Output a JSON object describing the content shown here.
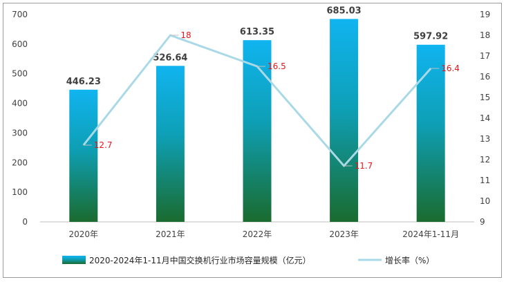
{
  "chart_data": {
    "type": "bar+line",
    "categories": [
      "2020年",
      "2021年",
      "2022年",
      "2023年",
      "2024年1-11月"
    ],
    "series": [
      {
        "name": "2020-2024年1-11月中国交换机行业市场容量规模（亿元）",
        "type": "bar",
        "axis": "left",
        "values": [
          446.23,
          526.64,
          613.35,
          685.03,
          597.92
        ],
        "labels": [
          "446.23",
          "526.64",
          "613.35",
          "685.03",
          "597.92"
        ],
        "color_top": "#10b4f0",
        "color_bottom": "#1a6b2e"
      },
      {
        "name": "增长率（%）",
        "type": "line",
        "axis": "right",
        "values": [
          12.7,
          18,
          16.5,
          11.7,
          16.4
        ],
        "labels": [
          "12.7",
          "18",
          "16.5",
          "11.7",
          "16.4"
        ],
        "color": "#a9d9e6",
        "label_color": "#e8141b"
      }
    ],
    "y_left": {
      "range": [
        0,
        700
      ],
      "ticks": [
        "0",
        "100",
        "200",
        "300",
        "400",
        "500",
        "600",
        "700"
      ]
    },
    "y_right": {
      "range": [
        9,
        19
      ],
      "ticks": [
        "9",
        "10",
        "11",
        "12",
        "13",
        "14",
        "15",
        "16",
        "17",
        "18",
        "19"
      ]
    },
    "grid": false,
    "legend_position": "bottom"
  }
}
